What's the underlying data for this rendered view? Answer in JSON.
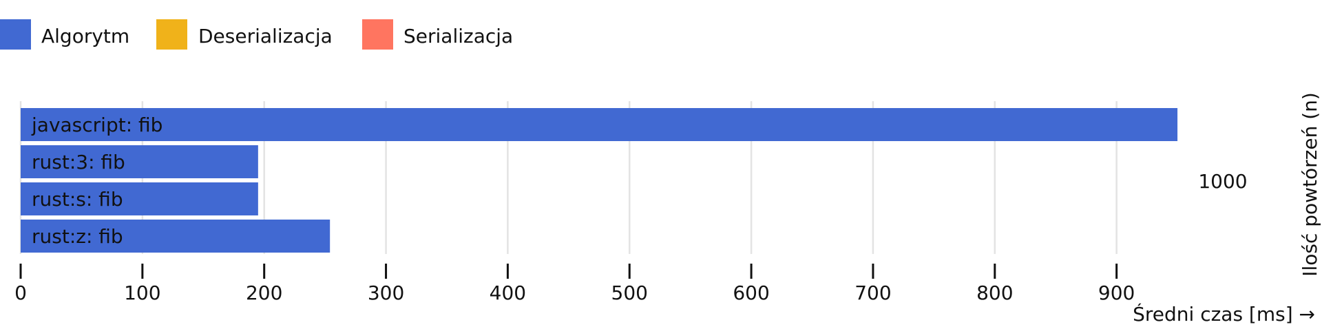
{
  "legend": [
    {
      "label": "Algorytm",
      "color": "#4169D2"
    },
    {
      "label": "Deserializacja",
      "color": "#F0B21A"
    },
    {
      "label": "Serializacja",
      "color": "#FF7560"
    }
  ],
  "chart_data": {
    "type": "bar",
    "orientation": "horizontal",
    "stacked": true,
    "categories": [
      "javascript: fib",
      "rust:3: fib",
      "rust:s: fib",
      "rust:z: fib"
    ],
    "series": [
      {
        "name": "Algorytm",
        "values": [
          950,
          195,
          195,
          254
        ]
      },
      {
        "name": "Deserializacja",
        "values": [
          0,
          0,
          0,
          0
        ]
      },
      {
        "name": "Serializacja",
        "values": [
          0,
          0,
          0,
          0
        ]
      }
    ],
    "group_label": "1000",
    "xlabel": "Średni czas [ms] →",
    "ylabel": "Ilość powtórzeń (n)",
    "xticks": [
      0,
      100,
      200,
      300,
      400,
      500,
      600,
      700,
      800,
      900
    ],
    "xlim": [
      0,
      1000
    ],
    "grid": true,
    "legend_position": "top-left"
  }
}
